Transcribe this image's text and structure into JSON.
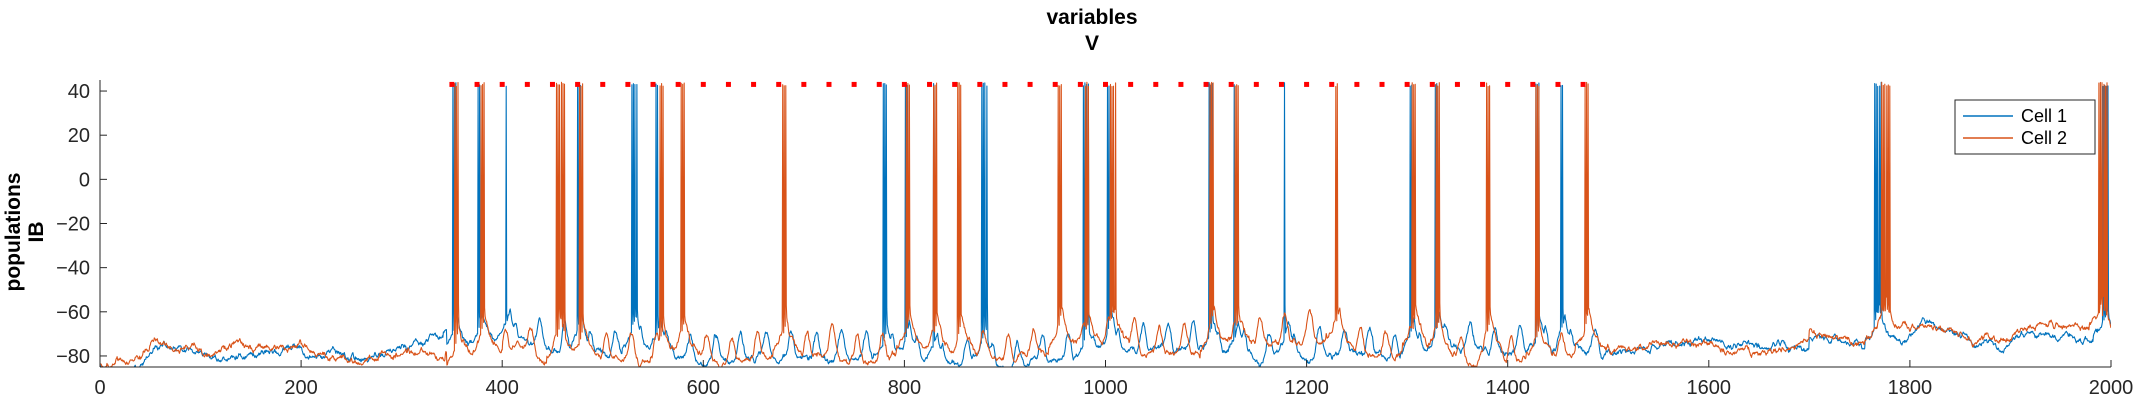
{
  "chart_data": {
    "type": "line",
    "title": [
      "variables",
      "V"
    ],
    "ylabel": [
      "populations",
      "IB"
    ],
    "xlim": [
      0,
      2000
    ],
    "ylim": [
      -85,
      45
    ],
    "xticks": [
      0,
      200,
      400,
      600,
      800,
      1000,
      1200,
      1400,
      1600,
      1800,
      2000
    ],
    "yticks": [
      -80,
      -60,
      -40,
      -20,
      0,
      20,
      40
    ],
    "grid": false,
    "legend": {
      "location": "top-right"
    },
    "colors": {
      "cell1": "#0072BD",
      "cell2": "#D95319",
      "marker": "#FF0000"
    },
    "series": [
      {
        "name": "Cell 1",
        "color": "#0072BD",
        "baseline": -77,
        "spikes": [
          {
            "t": 351,
            "n": 3
          },
          {
            "t": 376,
            "n": 2
          },
          {
            "t": 404,
            "n": 1
          },
          {
            "t": 475,
            "n": 3
          },
          {
            "t": 529,
            "n": 4
          },
          {
            "t": 553,
            "n": 2
          },
          {
            "t": 779,
            "n": 3
          },
          {
            "t": 801,
            "n": 2
          },
          {
            "t": 829,
            "n": 1
          },
          {
            "t": 877,
            "n": 4
          },
          {
            "t": 978,
            "n": 4
          },
          {
            "t": 1002,
            "n": 2
          },
          {
            "t": 1103,
            "n": 3
          },
          {
            "t": 1128,
            "n": 1
          },
          {
            "t": 1178,
            "n": 1
          },
          {
            "t": 1303,
            "n": 2
          },
          {
            "t": 1328,
            "n": 2
          },
          {
            "t": 1428,
            "n": 3
          },
          {
            "t": 1453,
            "n": 2
          },
          {
            "t": 1765,
            "n": 5
          },
          {
            "t": 1992,
            "n": 4
          }
        ]
      },
      {
        "name": "Cell 2",
        "color": "#D95319",
        "baseline": -77,
        "spikes": [
          {
            "t": 353,
            "n": 3
          },
          {
            "t": 379,
            "n": 3
          },
          {
            "t": 454,
            "n": 6
          },
          {
            "t": 477,
            "n": 3
          },
          {
            "t": 557,
            "n": 3
          },
          {
            "t": 578,
            "n": 3
          },
          {
            "t": 679,
            "n": 3
          },
          {
            "t": 802,
            "n": 3
          },
          {
            "t": 829,
            "n": 3
          },
          {
            "t": 853,
            "n": 3
          },
          {
            "t": 953,
            "n": 3
          },
          {
            "t": 980,
            "n": 3
          },
          {
            "t": 1005,
            "n": 4
          },
          {
            "t": 1104,
            "n": 3
          },
          {
            "t": 1129,
            "n": 3
          },
          {
            "t": 1229,
            "n": 2
          },
          {
            "t": 1305,
            "n": 3
          },
          {
            "t": 1329,
            "n": 3
          },
          {
            "t": 1379,
            "n": 3
          },
          {
            "t": 1428,
            "n": 3
          },
          {
            "t": 1477,
            "n": 3
          },
          {
            "t": 1772,
            "n": 6
          },
          {
            "t": 1988,
            "n": 6
          }
        ]
      }
    ],
    "raster_markers": {
      "y": 43,
      "x": [
        350,
        375,
        400,
        425,
        450,
        475,
        500,
        525,
        550,
        575,
        600,
        625,
        650,
        675,
        700,
        725,
        750,
        775,
        800,
        825,
        850,
        875,
        900,
        925,
        950,
        975,
        1000,
        1025,
        1050,
        1075,
        1100,
        1125,
        1150,
        1175,
        1200,
        1225,
        1250,
        1275,
        1300,
        1325,
        1350,
        1375,
        1400,
        1425,
        1450,
        1475
      ]
    }
  }
}
